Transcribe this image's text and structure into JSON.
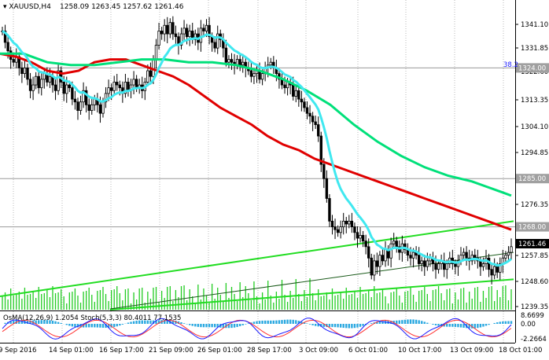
{
  "header": {
    "title": "XAUUSD,H4",
    "ohlc": "1258.09 1263.45 1257.62 1261.46"
  },
  "indicator_header": "OsMA(12,26,9) 1.2054 Stoch(5,3,3) 80.4011 77.1535",
  "fib_level_label": "38.2",
  "price_axis": {
    "ticks": [
      "1341.10",
      "1331.85",
      "1322.60",
      "1313.35",
      "1304.10",
      "1294.85",
      "1285.60",
      "1276.35",
      "1267.10",
      "1257.85",
      "1248.60",
      "1239.35"
    ],
    "hlines": [
      "1324.00",
      "1285.00",
      "1268.00"
    ],
    "current_price": "1261.46",
    "current_price_color": "#ffffff"
  },
  "indicator_axis": {
    "ticks": [
      "8.6699",
      "0.00",
      "-2.2664"
    ]
  },
  "time_axis": {
    "ticks": [
      "9 Sep 2016",
      "14 Sep 01:00",
      "16 Sep 17:00",
      "21 Sep 09:00",
      "26 Sep 01:00",
      "28 Sep 17:00",
      "3 Oct 09:00",
      "6 Oct 01:00",
      "10 Oct 17:00",
      "13 Oct 09:00",
      "18 Oct 01:00"
    ]
  },
  "colors": {
    "ema_red": "#e00000",
    "ema_green": "#00e07a",
    "ema_cyan": "#40e8f0",
    "trend_green": "#22dd22",
    "volume": "#22cc22",
    "osma": "#2aa8e0",
    "stoch_main": "#1a1aff",
    "stoch_signal": "#ff3030"
  },
  "chart_data": {
    "type": "candlestick",
    "symbol": "XAUUSD",
    "timeframe": "H4",
    "ylim": [
      1239.35,
      1343.5
    ],
    "horizontal_levels": [
      1324.0,
      1285.0,
      1268.0
    ],
    "close_series": [
      1337,
      1333,
      1330,
      1327,
      1326,
      1328,
      1324,
      1322,
      1324,
      1320,
      1316,
      1318,
      1321,
      1317,
      1320,
      1322,
      1319,
      1321,
      1318,
      1316,
      1323,
      1319,
      1315,
      1318,
      1317,
      1313,
      1312,
      1309,
      1312,
      1316,
      1311,
      1309,
      1311,
      1313,
      1311,
      1308,
      1312,
      1315,
      1317,
      1316,
      1319,
      1318,
      1317,
      1315,
      1319,
      1316,
      1318,
      1320,
      1317,
      1318,
      1316,
      1319,
      1323,
      1321,
      1327,
      1332,
      1337,
      1336,
      1339,
      1336,
      1340,
      1336,
      1335,
      1332,
      1336,
      1338,
      1335,
      1337,
      1334,
      1336,
      1333,
      1338,
      1337,
      1339,
      1335,
      1333,
      1331,
      1336,
      1334,
      1331,
      1326,
      1327,
      1326,
      1325,
      1327,
      1325,
      1326,
      1324,
      1323,
      1321,
      1322,
      1323,
      1320,
      1322,
      1324,
      1325,
      1326,
      1324,
      1322,
      1320,
      1318,
      1317,
      1319,
      1318,
      1314,
      1316,
      1313,
      1312,
      1310,
      1308,
      1307,
      1305,
      1304,
      1300,
      1290,
      1285,
      1278,
      1270,
      1268,
      1267,
      1266,
      1268,
      1270,
      1269,
      1270,
      1268,
      1266,
      1264,
      1265,
      1263,
      1261,
      1257,
      1251,
      1256,
      1254,
      1258,
      1256,
      1260,
      1257,
      1262,
      1263,
      1261,
      1259,
      1262,
      1260,
      1258,
      1257,
      1259,
      1258,
      1255,
      1256,
      1254,
      1256,
      1257,
      1255,
      1253,
      1255,
      1256,
      1253,
      1255,
      1257,
      1255,
      1254,
      1256,
      1258,
      1259,
      1257,
      1256,
      1258,
      1257,
      1256,
      1254,
      1255,
      1257,
      1253,
      1251,
      1254,
      1252,
      1255,
      1257,
      1258,
      1259,
      1261
    ],
    "series": [
      {
        "name": "EMA slow",
        "color": "#e00000",
        "points": [
          [
            0,
            1329
          ],
          [
            20,
            1328
          ],
          [
            40,
            1326
          ],
          [
            60,
            1323
          ],
          [
            80,
            1322
          ],
          [
            100,
            1323
          ],
          [
            120,
            1326
          ],
          [
            140,
            1327
          ],
          [
            160,
            1327
          ],
          [
            180,
            1325
          ],
          [
            200,
            1323
          ],
          [
            220,
            1321
          ],
          [
            240,
            1318
          ],
          [
            260,
            1314
          ],
          [
            280,
            1310
          ],
          [
            300,
            1307
          ],
          [
            320,
            1304
          ],
          [
            340,
            1300
          ],
          [
            360,
            1297
          ],
          [
            380,
            1295
          ],
          [
            400,
            1292
          ],
          [
            420,
            1290
          ],
          [
            440,
            1288
          ],
          [
            460,
            1286
          ],
          [
            480,
            1284
          ],
          [
            500,
            1282
          ],
          [
            520,
            1280
          ],
          [
            540,
            1278
          ],
          [
            560,
            1276
          ],
          [
            580,
            1274
          ],
          [
            600,
            1272
          ],
          [
            620,
            1270
          ],
          [
            640,
            1268
          ],
          [
            650,
            1267
          ]
        ]
      },
      {
        "name": "EMA mid",
        "color": "#00e07a",
        "points": [
          [
            0,
            1329
          ],
          [
            30,
            1329
          ],
          [
            60,
            1326
          ],
          [
            90,
            1325
          ],
          [
            120,
            1325
          ],
          [
            150,
            1326
          ],
          [
            180,
            1327
          ],
          [
            210,
            1327
          ],
          [
            240,
            1326
          ],
          [
            270,
            1326
          ],
          [
            300,
            1325
          ],
          [
            330,
            1323
          ],
          [
            360,
            1320
          ],
          [
            390,
            1316
          ],
          [
            420,
            1311
          ],
          [
            450,
            1304
          ],
          [
            480,
            1298
          ],
          [
            510,
            1293
          ],
          [
            540,
            1289
          ],
          [
            570,
            1286
          ],
          [
            600,
            1284
          ],
          [
            620,
            1282
          ],
          [
            640,
            1280
          ],
          [
            650,
            1279
          ]
        ]
      }
    ],
    "last_close": 1261.46
  }
}
